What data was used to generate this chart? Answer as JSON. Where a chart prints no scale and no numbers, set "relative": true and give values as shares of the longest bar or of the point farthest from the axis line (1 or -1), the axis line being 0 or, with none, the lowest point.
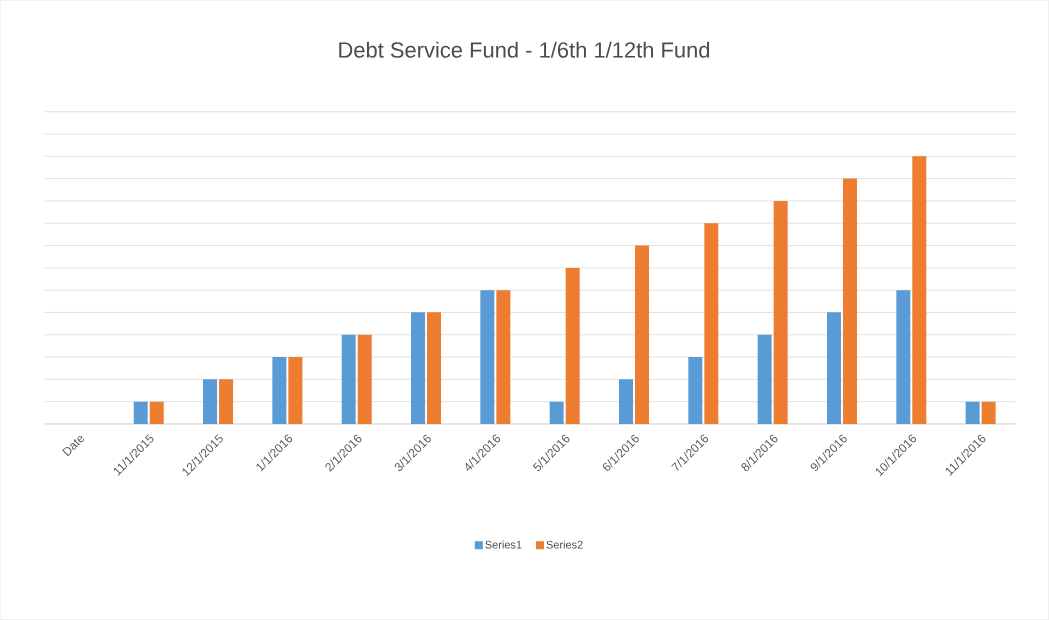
{
  "chart_data": {
    "type": "bar",
    "title": "Debt Service  Fund - 1/6th 1/12th Fund",
    "categories": [
      "Date",
      "11/1/2015",
      "12/1/2015",
      "1/1/2016",
      "2/1/2016",
      "3/1/2016",
      "4/1/2016",
      "5/1/2016",
      "6/1/2016",
      "7/1/2016",
      "8/1/2016",
      "9/1/2016",
      "10/1/2016",
      "11/1/2016"
    ],
    "relative": true,
    "grid": "y",
    "legend": "bottom",
    "series": [
      {
        "name": "Series1",
        "color": "#5b9bd5",
        "values": [
          null,
          0.083,
          0.167,
          0.25,
          0.333,
          0.417,
          0.5,
          0.083,
          0.167,
          0.25,
          0.333,
          0.417,
          0.5,
          0.083
        ]
      },
      {
        "name": "Series2",
        "color": "#ed7d31",
        "values": [
          null,
          0.083,
          0.167,
          0.25,
          0.333,
          0.417,
          0.5,
          0.583,
          0.667,
          0.75,
          0.833,
          0.917,
          1,
          0.083
        ]
      }
    ]
  }
}
